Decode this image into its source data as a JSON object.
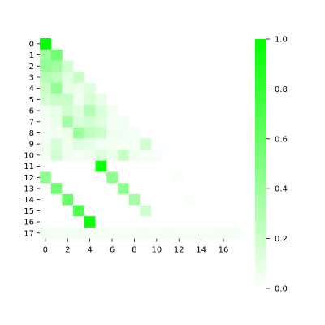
{
  "chart_data": {
    "type": "heatmap",
    "title": "",
    "xlabel": "",
    "ylabel": "",
    "x_ticks": [
      "0",
      "2",
      "4",
      "6",
      "8",
      "10",
      "12",
      "14",
      "16"
    ],
    "y_ticks": [
      "0",
      "1",
      "2",
      "3",
      "4",
      "5",
      "6",
      "7",
      "8",
      "9",
      "10",
      "11",
      "12",
      "13",
      "14",
      "15",
      "16",
      "17"
    ],
    "rows": 18,
    "cols": 18,
    "mask": "upper-triangle",
    "values": [
      [
        1.0
      ],
      [
        0.38,
        0.55
      ],
      [
        0.42,
        0.38,
        0.18
      ],
      [
        0.3,
        0.25,
        0.12,
        0.22
      ],
      [
        0.22,
        0.42,
        0.1,
        0.08,
        0.12
      ],
      [
        0.18,
        0.22,
        0.22,
        0.06,
        0.16,
        0.1
      ],
      [
        0.06,
        0.1,
        0.18,
        0.12,
        0.3,
        0.14,
        0.06
      ],
      [
        0.04,
        0.08,
        0.35,
        0.14,
        0.18,
        0.12,
        0.05,
        0.05
      ],
      [
        0.04,
        0.06,
        0.08,
        0.4,
        0.26,
        0.2,
        0.06,
        0.06,
        0.04
      ],
      [
        0.06,
        0.16,
        0.06,
        0.12,
        0.1,
        0.05,
        0.05,
        0.04,
        0.04,
        0.18
      ],
      [
        0.06,
        0.18,
        0.06,
        0.04,
        0.06,
        0.14,
        0.08,
        0.22,
        0.06,
        0.04,
        0.04
      ],
      [
        0.0,
        0.0,
        0.0,
        0.0,
        0.0,
        0.95,
        0.0,
        0.0,
        0.0,
        0.0,
        0.0,
        0.0
      ],
      [
        0.45,
        0.0,
        0.0,
        0.0,
        0.0,
        0.0,
        0.45,
        0.0,
        0.0,
        0.0,
        0.0,
        0.0,
        0.02
      ],
      [
        0.0,
        0.55,
        0.0,
        0.0,
        0.0,
        0.0,
        0.0,
        0.45,
        0.0,
        0.0,
        0.0,
        0.0,
        0.0,
        0.0
      ],
      [
        0.0,
        0.0,
        0.6,
        0.0,
        0.0,
        0.0,
        0.0,
        0.0,
        0.35,
        0.0,
        0.0,
        0.0,
        0.0,
        0.02,
        0.0
      ],
      [
        0.0,
        0.0,
        0.0,
        0.7,
        0.0,
        0.0,
        0.0,
        0.0,
        0.0,
        0.2,
        0.0,
        0.0,
        0.0,
        0.0,
        0.0,
        0.0
      ],
      [
        0.0,
        0.0,
        0.0,
        0.0,
        0.95,
        0.0,
        0.0,
        0.0,
        0.0,
        0.0,
        0.0,
        0.0,
        0.0,
        0.0,
        0.0,
        0.0,
        0.0
      ],
      [
        0.06,
        0.05,
        0.05,
        0.06,
        0.05,
        0.05,
        0.04,
        0.04,
        0.04,
        0.05,
        0.04,
        0.05,
        0.04,
        0.04,
        0.04,
        0.04,
        0.05,
        0.05
      ]
    ],
    "colorbar": {
      "min": 0.0,
      "max": 1.0,
      "ticks": [
        "0.0",
        "0.2",
        "0.4",
        "0.6",
        "0.8",
        "1.0"
      ],
      "low_color": "#ffffff",
      "high_color": "#00ff00"
    },
    "grid": false,
    "legend": "colorbar right"
  }
}
